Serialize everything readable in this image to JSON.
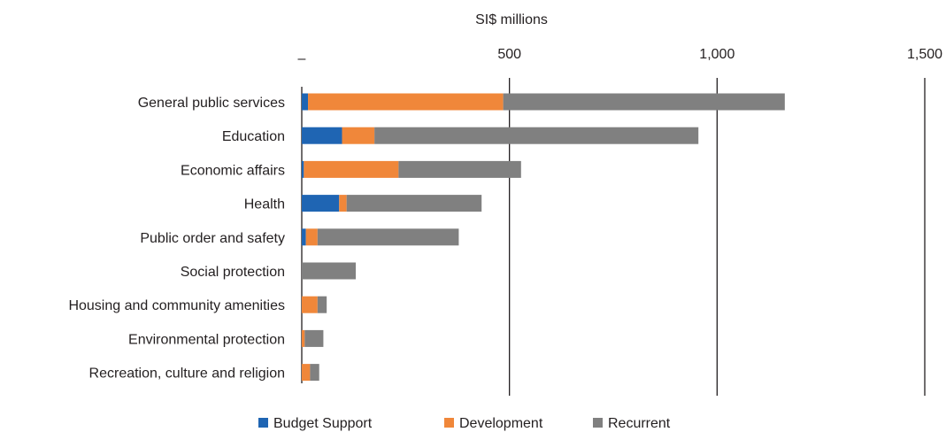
{
  "chart_data": {
    "type": "bar",
    "orientation": "horizontal",
    "stacked": true,
    "xlabel": "SI$ millions",
    "xlim": [
      0,
      1500
    ],
    "xticks": [
      0,
      500,
      1000,
      1500
    ],
    "xtick_labels": [
      "–",
      "500",
      "1,000",
      "1,500"
    ],
    "categories": [
      "General public services",
      "Education",
      "Economic affairs",
      "Health",
      "Public order and safety",
      "Social protection",
      "Housing and community amenities",
      "Environmental protection",
      "Recreation, culture and religion"
    ],
    "series": [
      {
        "name": "Budget Support",
        "color": "#1f65b3",
        "values": [
          15,
          97,
          5,
          90,
          10,
          0,
          0,
          0,
          0
        ]
      },
      {
        "name": "Development",
        "color": "#f0873a",
        "values": [
          470,
          78,
          228,
          18,
          28,
          0,
          38,
          7,
          20
        ]
      },
      {
        "name": "Recurrent",
        "color": "#808080",
        "values": [
          678,
          780,
          295,
          325,
          340,
          130,
          22,
          45,
          22
        ]
      }
    ],
    "grid": "vertical",
    "legend_position": "bottom"
  }
}
